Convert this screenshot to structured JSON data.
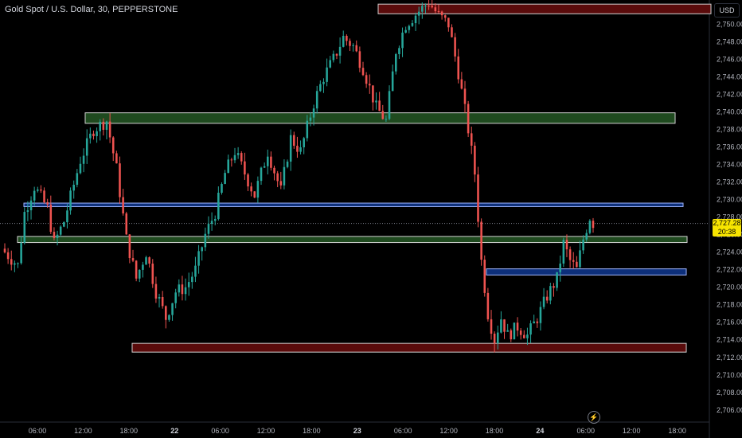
{
  "header": {
    "symbol_title": "Gold Spot / U.S. Dollar, 30, PEPPERSTONE"
  },
  "currency_label": "USD",
  "last_price": {
    "price": "2,727.28",
    "countdown": "20:38"
  },
  "icons": {
    "replay": "lightning-icon"
  },
  "colors": {
    "background": "#000000",
    "up_candle": "#26a69a",
    "down_candle": "#ef5350",
    "supply_zone_fill": "#5a0b0b",
    "demand_zone_fill": "#1f4a1f",
    "blue_zone_fill": "#0d2f7a",
    "price_tag": "#f7e400"
  },
  "chart_data": {
    "type": "candlestick",
    "ylim": [
      2704.5,
      2753.3
    ],
    "y_ticks": [
      "2,706.00",
      "2,708.00",
      "2,710.00",
      "2,712.00",
      "2,714.00",
      "2,716.00",
      "2,718.00",
      "2,720.00",
      "2,722.00",
      "2,724.00",
      "2,726.00",
      "2,728.00",
      "2,730.00",
      "2,732.00",
      "2,734.00",
      "2,736.00",
      "2,738.00",
      "2,740.00",
      "2,742.00",
      "2,744.00",
      "2,746.00",
      "2,748.00",
      "2,750.00"
    ],
    "x_ticks": [
      "06:00",
      "12:00",
      "18:00",
      "22",
      "06:00",
      "12:00",
      "18:00",
      "23",
      "06:00",
      "12:00",
      "18:00",
      "24",
      "06:00",
      "12:00",
      "18:00"
    ],
    "grid": false,
    "anchors": [
      {
        "i": 0,
        "p": 2724.0
      },
      {
        "i": 4,
        "p": 2722.5
      },
      {
        "i": 6,
        "p": 2728.5
      },
      {
        "i": 9,
        "p": 2731.5
      },
      {
        "i": 13,
        "p": 2729.0
      },
      {
        "i": 15,
        "p": 2725.0
      },
      {
        "i": 18,
        "p": 2727.5
      },
      {
        "i": 23,
        "p": 2734.5
      },
      {
        "i": 27,
        "p": 2738.0
      },
      {
        "i": 31,
        "p": 2739.0
      },
      {
        "i": 34,
        "p": 2733.5
      },
      {
        "i": 37,
        "p": 2725.5
      },
      {
        "i": 40,
        "p": 2721.0
      },
      {
        "i": 43,
        "p": 2724.0
      },
      {
        "i": 46,
        "p": 2719.5
      },
      {
        "i": 49,
        "p": 2716.5
      },
      {
        "i": 52,
        "p": 2719.5
      },
      {
        "i": 55,
        "p": 2720.0
      },
      {
        "i": 58,
        "p": 2722.0
      },
      {
        "i": 61,
        "p": 2726.0
      },
      {
        "i": 64,
        "p": 2728.5
      },
      {
        "i": 67,
        "p": 2733.0
      },
      {
        "i": 70,
        "p": 2735.5
      },
      {
        "i": 73,
        "p": 2733.0
      },
      {
        "i": 76,
        "p": 2730.5
      },
      {
        "i": 80,
        "p": 2735.5
      },
      {
        "i": 84,
        "p": 2731.0
      },
      {
        "i": 87,
        "p": 2737.0
      },
      {
        "i": 90,
        "p": 2735.5
      },
      {
        "i": 94,
        "p": 2741.0
      },
      {
        "i": 97,
        "p": 2744.0
      },
      {
        "i": 100,
        "p": 2746.0
      },
      {
        "i": 103,
        "p": 2748.5
      },
      {
        "i": 106,
        "p": 2747.5
      },
      {
        "i": 109,
        "p": 2745.0
      },
      {
        "i": 113,
        "p": 2740.5
      },
      {
        "i": 116,
        "p": 2739.0
      },
      {
        "i": 119,
        "p": 2747.0
      },
      {
        "i": 122,
        "p": 2750.0
      },
      {
        "i": 126,
        "p": 2751.5
      },
      {
        "i": 129,
        "p": 2752.5
      },
      {
        "i": 132,
        "p": 2751.0
      },
      {
        "i": 135,
        "p": 2750.0
      },
      {
        "i": 138,
        "p": 2744.5
      },
      {
        "i": 141,
        "p": 2738.0
      },
      {
        "i": 143,
        "p": 2733.0
      },
      {
        "i": 145,
        "p": 2723.0
      },
      {
        "i": 147,
        "p": 2717.0
      },
      {
        "i": 149,
        "p": 2714.0
      },
      {
        "i": 151,
        "p": 2716.5
      },
      {
        "i": 153,
        "p": 2714.5
      },
      {
        "i": 156,
        "p": 2715.5
      },
      {
        "i": 159,
        "p": 2714.5
      },
      {
        "i": 162,
        "p": 2716.5
      },
      {
        "i": 165,
        "p": 2719.0
      },
      {
        "i": 168,
        "p": 2721.0
      },
      {
        "i": 170,
        "p": 2725.0
      },
      {
        "i": 172,
        "p": 2723.0
      },
      {
        "i": 174,
        "p": 2722.0
      },
      {
        "i": 176,
        "p": 2725.5
      },
      {
        "i": 178,
        "p": 2728.0
      },
      {
        "i": 179,
        "p": 2727.3
      }
    ],
    "zones": [
      {
        "name": "supply-zone-top",
        "y1": 2752.3,
        "y2": 2751.2,
        "x1": 475,
        "x2": 893,
        "fill": "#5a0b0b",
        "stroke": "#d3d3d3"
      },
      {
        "name": "demand-zone-upper",
        "y1": 2739.9,
        "y2": 2738.7,
        "x1": 107,
        "x2": 848,
        "fill": "#1f4a1f",
        "stroke": "#d3d3d3"
      },
      {
        "name": "blue-line-upper",
        "y1": 2729.6,
        "y2": 2729.2,
        "x1": 30,
        "x2": 858,
        "fill": "#0d2f7a",
        "stroke": "#a0b6ff"
      },
      {
        "name": "demand-zone-lower",
        "y1": 2725.8,
        "y2": 2725.1,
        "x1": 22,
        "x2": 863,
        "fill": "#1f4a1f",
        "stroke": "#d3d3d3"
      },
      {
        "name": "blue-zone-lower",
        "y1": 2722.1,
        "y2": 2721.4,
        "x1": 611,
        "x2": 862,
        "fill": "#0d2f7a",
        "stroke": "#a0b6ff"
      },
      {
        "name": "supply-zone-bottom",
        "y1": 2713.6,
        "y2": 2712.6,
        "x1": 166,
        "x2": 862,
        "fill": "#5a0b0b",
        "stroke": "#d3d3d3"
      }
    ]
  }
}
